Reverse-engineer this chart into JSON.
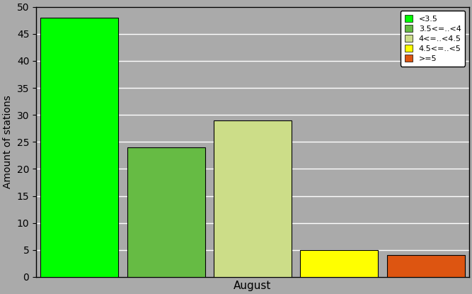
{
  "month": "August",
  "bars": [
    {
      "label": "<3.5",
      "value": 48,
      "color": "#00FF00"
    },
    {
      "label": "3.5<=..<4",
      "value": 24,
      "color": "#66BB44"
    },
    {
      "label": "4<=..<4.5",
      "value": 29,
      "color": "#CCDD88"
    },
    {
      "label": "4.5<=..<5",
      "value": 5,
      "color": "#FFFF00"
    },
    {
      "label": ">=5",
      "value": 4,
      "color": "#DD5511"
    }
  ],
  "ylabel": "Amount of stations",
  "ylim": [
    0,
    50
  ],
  "yticks": [
    0,
    5,
    10,
    15,
    20,
    25,
    30,
    35,
    40,
    45,
    50
  ],
  "background_color": "#AAAAAA",
  "plot_bg_color": "#AAAAAA",
  "grid_color": "#FFFFFF",
  "bar_width": 0.9,
  "legend_fontsize": 8,
  "ylabel_fontsize": 10,
  "xlabel_fontsize": 11,
  "tick_fontsize": 10,
  "figwidth": 6.67,
  "figheight": 4.15,
  "dpi": 100
}
